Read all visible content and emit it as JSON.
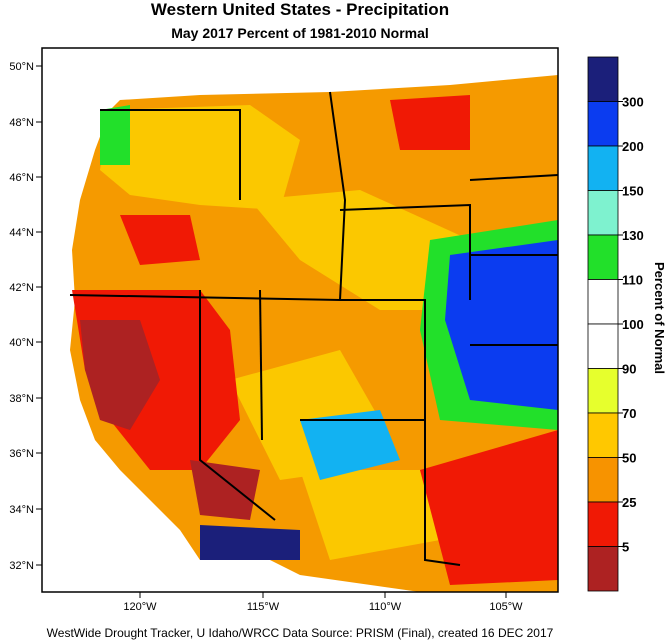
{
  "title": "Western United States - Precipitation",
  "subtitle": "May 2017  Percent of 1981-2010 Normal",
  "footer": "WestWide Drought Tracker, U Idaho/WRCC Data Source: PRISM (Final), created 16 DEC 2017",
  "lat_labels": [
    "50°N",
    "48°N",
    "46°N",
    "44°N",
    "42°N",
    "40°N",
    "38°N",
    "36°N",
    "34°N",
    "32°N"
  ],
  "lon_labels": [
    "120°W",
    "115°W",
    "110°W",
    "105°W"
  ],
  "colorbar": {
    "title": "Percent of Normal",
    "tick_labels": [
      "300",
      "200",
      "150",
      "130",
      "110",
      "100",
      "90",
      "70",
      "50",
      "25",
      "5"
    ],
    "colors": [
      "#1b1f7a",
      "#0b3cf0",
      "#12b2f2",
      "#7ef2cf",
      "#22e02a",
      "#ffffff",
      "#ffffff",
      "#e6ff2d",
      "#ffc800",
      "#f79300",
      "#f01905",
      "#ad2222"
    ]
  }
}
